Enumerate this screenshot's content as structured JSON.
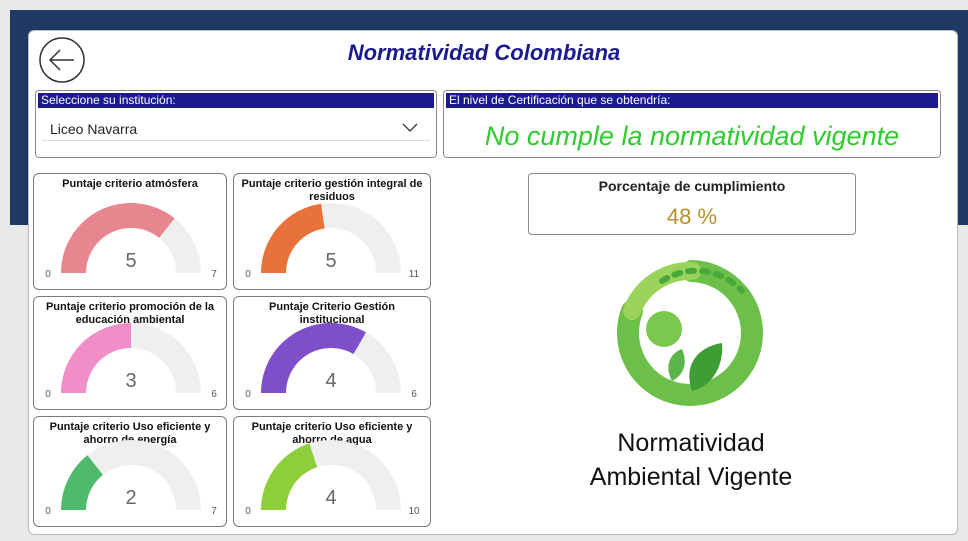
{
  "header": {
    "title": "Normatividad Colombiana"
  },
  "selector": {
    "label": "Seleccione su institución:",
    "value": "Liceo Navarra"
  },
  "certification": {
    "label": "El nivel de Certificación que se obtendría:",
    "value": "No cumple la normatividad vigente"
  },
  "percentage": {
    "title": "Porcentaje de cumplimiento",
    "value": "48 %"
  },
  "logo": {
    "lines": [
      "Normatividad",
      "Ambiental Vigente"
    ]
  },
  "chart_data": [
    {
      "type": "gauge",
      "title": "Puntaje criterio atmósfera",
      "value": 5,
      "ylim": [
        0,
        7
      ],
      "yticks": [
        0,
        7
      ],
      "color": "#e8868f"
    },
    {
      "type": "gauge",
      "title": "Puntaje criterio gestión integral de residuos",
      "value": 5,
      "ylim": [
        0,
        11
      ],
      "yticks": [
        0,
        11
      ],
      "color": "#e9713a"
    },
    {
      "type": "gauge",
      "title": "Puntaje criterio promoción de la educación ambiental",
      "value": 3,
      "ylim": [
        0,
        6
      ],
      "yticks": [
        0,
        6
      ],
      "color": "#f08ec8"
    },
    {
      "type": "gauge",
      "title": "Puntaje Criterio Gestión institucional",
      "value": 4,
      "ylim": [
        0,
        6
      ],
      "yticks": [
        0,
        6
      ],
      "color": "#7e4fc9"
    },
    {
      "type": "gauge",
      "title": "Puntaje criterio Uso eficiente y ahorro de energía",
      "value": 2,
      "ylim": [
        0,
        7
      ],
      "yticks": [
        0,
        7
      ],
      "color": "#4fba6b"
    },
    {
      "type": "gauge",
      "title": "Puntaje criterio Uso eficiente y ahorro de agua",
      "value": 4,
      "ylim": [
        0,
        10
      ],
      "yticks": [
        0,
        10
      ],
      "color": "#8ccf3a"
    }
  ]
}
